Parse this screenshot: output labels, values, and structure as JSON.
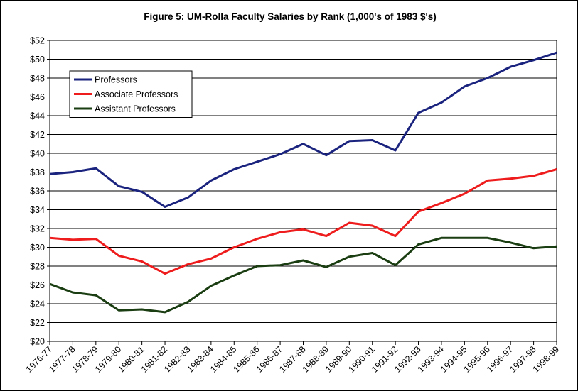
{
  "chart_data": {
    "type": "line",
    "title": "Figure 5: UM-Rolla Faculty Salaries by Rank (1,000's of 1983 $'s)",
    "xlabel": "",
    "ylabel": "",
    "ylim": [
      20,
      52
    ],
    "ytick_step": 2,
    "ytick_prefix": "$",
    "grid": "horizontal",
    "legend_position": "top-left",
    "categories": [
      "1976-77",
      "1977-78",
      "1978-79",
      "1979-80",
      "1980-81",
      "1981-82",
      "1982-83",
      "1983-84",
      "1984-85",
      "1985-86",
      "1986-87",
      "1987-88",
      "1988-89",
      "1989-90",
      "1990-91",
      "1991-92",
      "1992-93",
      "1993-94",
      "1994-95",
      "1995-96",
      "1996-97",
      "1997-98",
      "1998-99"
    ],
    "series": [
      {
        "name": "Professors",
        "color": "#1a237e",
        "values": [
          37.8,
          38.0,
          38.4,
          36.5,
          35.9,
          34.3,
          35.3,
          37.1,
          38.3,
          39.1,
          39.9,
          41.0,
          39.8,
          41.3,
          41.4,
          40.3,
          44.3,
          45.4,
          47.1,
          48.0,
          49.2,
          49.9,
          50.7
        ]
      },
      {
        "name": "Associate Professors",
        "color": "#ee1c1c",
        "values": [
          31.0,
          30.8,
          30.9,
          29.1,
          28.5,
          27.2,
          28.2,
          28.8,
          30.0,
          30.9,
          31.6,
          31.9,
          31.2,
          32.6,
          32.3,
          31.2,
          33.8,
          34.7,
          35.7,
          37.1,
          37.3,
          37.6,
          38.3
        ]
      },
      {
        "name": "Assistant Professors",
        "color": "#1b3d12",
        "values": [
          26.1,
          25.2,
          24.9,
          23.3,
          23.4,
          23.1,
          24.2,
          25.9,
          27.0,
          28.0,
          28.1,
          28.6,
          27.9,
          29.0,
          29.4,
          28.1,
          30.3,
          31.0,
          31.0,
          31.0,
          30.5,
          29.9,
          30.1
        ]
      }
    ]
  }
}
